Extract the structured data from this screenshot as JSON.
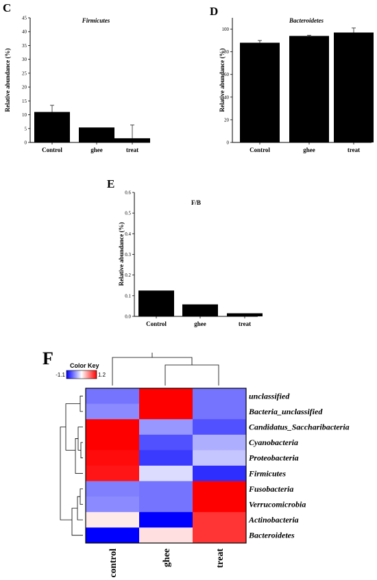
{
  "panels": {
    "c": "C",
    "d": "D",
    "e": "E",
    "f": "F"
  },
  "chart_data": [
    {
      "id": "C",
      "type": "bar",
      "title": "Firmicutes",
      "title_italic": true,
      "ylabel": "Relative abundance (%)",
      "xlabel": "",
      "categories": [
        "Control",
        "ghee",
        "treat"
      ],
      "values": [
        11,
        5.4,
        1.5
      ],
      "errors": [
        2.4,
        0,
        4.8
      ],
      "ylim": [
        0,
        45
      ],
      "yticks": [
        "0",
        "5",
        "10",
        "15",
        "20",
        "25",
        "30",
        "35",
        "40",
        "45"
      ]
    },
    {
      "id": "D",
      "type": "bar",
      "title": "Bacteroidetes",
      "title_italic": true,
      "ylabel": "Relative abundance (%)",
      "xlabel": "",
      "categories": [
        "Control",
        "ghee",
        "treat"
      ],
      "values": [
        88,
        94,
        97
      ],
      "errors": [
        2,
        0.5,
        4
      ],
      "ylim": [
        0,
        110
      ],
      "yticks": [
        "0",
        "20",
        "40",
        "60",
        "80",
        "100"
      ]
    },
    {
      "id": "E",
      "type": "bar",
      "title": "F/B",
      "title_italic": false,
      "ylabel": "Relative abundance (%)",
      "xlabel": "",
      "categories": [
        "Control",
        "ghee",
        "treat"
      ],
      "values": [
        0.125,
        0.058,
        0.015
      ],
      "errors": [
        0,
        0,
        0
      ],
      "ylim": [
        0,
        0.6
      ],
      "yticks": [
        "0.0",
        "0.1",
        "0.2",
        "0.3",
        "0.4",
        "0.5",
        "0.6"
      ]
    },
    {
      "id": "F",
      "type": "heatmap",
      "columns": [
        "control",
        "ghee",
        "treat"
      ],
      "rows": [
        "unclassified",
        "Bacteria_unclassified",
        "Candidatus_Saccharibacteria",
        "Cyanobacteria",
        "Proteobacteria",
        "Firmicutes",
        "Fusobacteria",
        "Verrucomicrobia",
        "Actinobacteria",
        "Bacteroidetes"
      ],
      "values": [
        [
          -0.6,
          1.2,
          -0.6
        ],
        [
          -0.5,
          1.2,
          -0.6
        ],
        [
          1.2,
          -0.45,
          -0.75
        ],
        [
          1.2,
          -0.75,
          -0.35
        ],
        [
          1.15,
          -0.85,
          -0.25
        ],
        [
          1.1,
          -0.15,
          -0.9
        ],
        [
          -0.55,
          -0.6,
          1.2
        ],
        [
          -0.5,
          -0.6,
          1.2
        ],
        [
          0.1,
          -1.1,
          0.95
        ],
        [
          -1.1,
          0.15,
          0.95
        ]
      ],
      "color_key": {
        "title": "Color Key",
        "min_label": "-1.1",
        "max_label": "1.2",
        "min": -1.1,
        "max": 1.2,
        "low_color": "#0000ff",
        "mid_color": "#ffffff",
        "high_color": "#ff0000"
      }
    }
  ]
}
